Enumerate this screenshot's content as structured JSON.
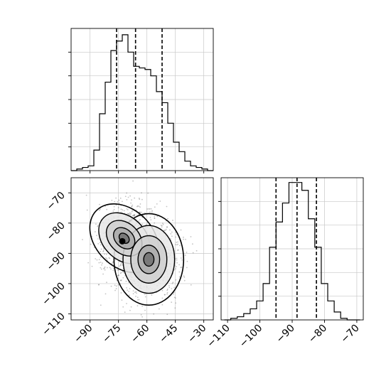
{
  "colors": {
    "axes": "#000000",
    "grid": "#c8c8c8",
    "line": "#000000",
    "points": "#555555"
  },
  "chart_data": [
    {
      "panel": "marginal-x",
      "type": "histogram",
      "bins": [
        -100,
        -97,
        -94,
        -91,
        -88,
        -85,
        -82,
        -79,
        -76,
        -73,
        -70,
        -67,
        -64,
        -61,
        -58,
        -55,
        -52,
        -49,
        -46,
        -43,
        -40,
        -37,
        -34,
        -31,
        -28,
        -25
      ],
      "counts": [
        0,
        0.01,
        0.02,
        0.03,
        0.13,
        0.36,
        0.56,
        0.76,
        0.82,
        0.86,
        0.75,
        0.66,
        0.65,
        0.64,
        0.6,
        0.5,
        0.43,
        0.3,
        0.18,
        0.12,
        0.06,
        0.03,
        0.02,
        0.01,
        0
      ],
      "quantiles": [
        -76,
        -66,
        -52
      ],
      "xlim": [
        -100,
        -25
      ],
      "ylim": [
        0,
        0.9
      ],
      "grid": true,
      "ytick_labels_shown": false
    },
    {
      "panel": "marginal-y",
      "type": "histogram",
      "bins": [
        -111,
        -109,
        -107,
        -105,
        -103,
        -101,
        -99,
        -97,
        -95,
        -93,
        -91,
        -89,
        -87,
        -85,
        -83,
        -81,
        -79,
        -77,
        -75,
        -73,
        -71,
        -69
      ],
      "counts": [
        0,
        0.01,
        0.02,
        0.04,
        0.07,
        0.12,
        0.23,
        0.46,
        0.62,
        0.74,
        0.87,
        0.87,
        0.82,
        0.64,
        0.46,
        0.23,
        0.12,
        0.05,
        0.01,
        0,
        0
      ],
      "quantiles": [
        -95,
        -88.5,
        -82.5
      ],
      "xlim": [
        -112,
        -68
      ],
      "ylim": [
        0,
        0.9
      ],
      "grid": true,
      "xticks": [
        -110,
        -100,
        -90,
        -80,
        -70
      ],
      "xtick_labels": [
        "−110",
        "−100",
        "−90",
        "−80",
        "−70"
      ]
    },
    {
      "panel": "joint",
      "type": "scatter+contour",
      "xlim": [
        -100,
        -25
      ],
      "ylim": [
        -112,
        -65
      ],
      "grid": true,
      "xticks": [
        -90,
        -75,
        -60,
        -45,
        -30
      ],
      "xtick_labels": [
        "−90",
        "−75",
        "−60",
        "−45",
        "−30"
      ],
      "yticks": [
        -110,
        -100,
        -90,
        -80,
        -70
      ],
      "ytick_labels": [
        "−110",
        "−100",
        "−90",
        "−80",
        "−70"
      ],
      "clusters": [
        {
          "center": [
            -72,
            -85
          ],
          "sigma": [
            7,
            6
          ],
          "rotation_deg": -45
        },
        {
          "center": [
            -59,
            -92
          ],
          "sigma": [
            8.5,
            7
          ],
          "rotation_deg": 0
        }
      ],
      "contour_levels": 4,
      "best_point": [
        -73,
        -86
      ]
    }
  ]
}
